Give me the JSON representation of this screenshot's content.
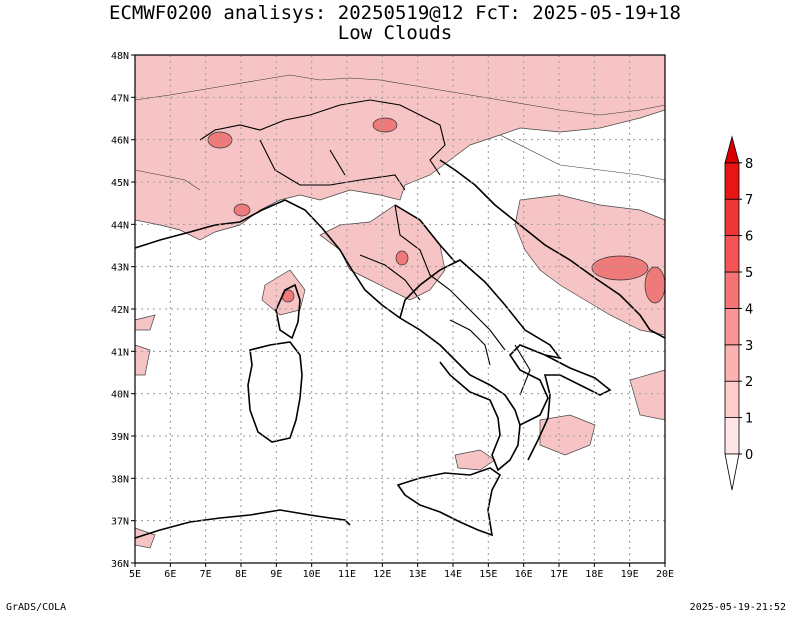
{
  "title": {
    "line1": "ECMWF0200 analisys: 20250519@12 FcT: 2025-05-19+18",
    "line2": "Low Clouds"
  },
  "map": {
    "lon_labels": [
      "5E",
      "6E",
      "7E",
      "8E",
      "9E",
      "10E",
      "11E",
      "12E",
      "13E",
      "14E",
      "15E",
      "16E",
      "17E",
      "18E",
      "19E",
      "20E"
    ],
    "lat_labels": [
      "36N",
      "37N",
      "38N",
      "39N",
      "40N",
      "41N",
      "42N",
      "43N",
      "44N",
      "45N",
      "46N",
      "47N",
      "48N"
    ],
    "lon_range": [
      5,
      20
    ],
    "lat_range": [
      36,
      48
    ],
    "grid": "dotted",
    "field_color": "#f4b8b8"
  },
  "colorbar": {
    "labels": [
      "0",
      "1",
      "2",
      "3",
      "4",
      "5",
      "6",
      "7",
      "8"
    ],
    "colors": [
      "#ffe6e6",
      "#ffcccc",
      "#fdb2b2",
      "#fa9595",
      "#f77474",
      "#f45454",
      "#f03535",
      "#e81515",
      "#d90000"
    ],
    "placement": "right"
  },
  "footer": {
    "left": "GrADS/COLA",
    "right": "2025-05-19-21:52"
  }
}
